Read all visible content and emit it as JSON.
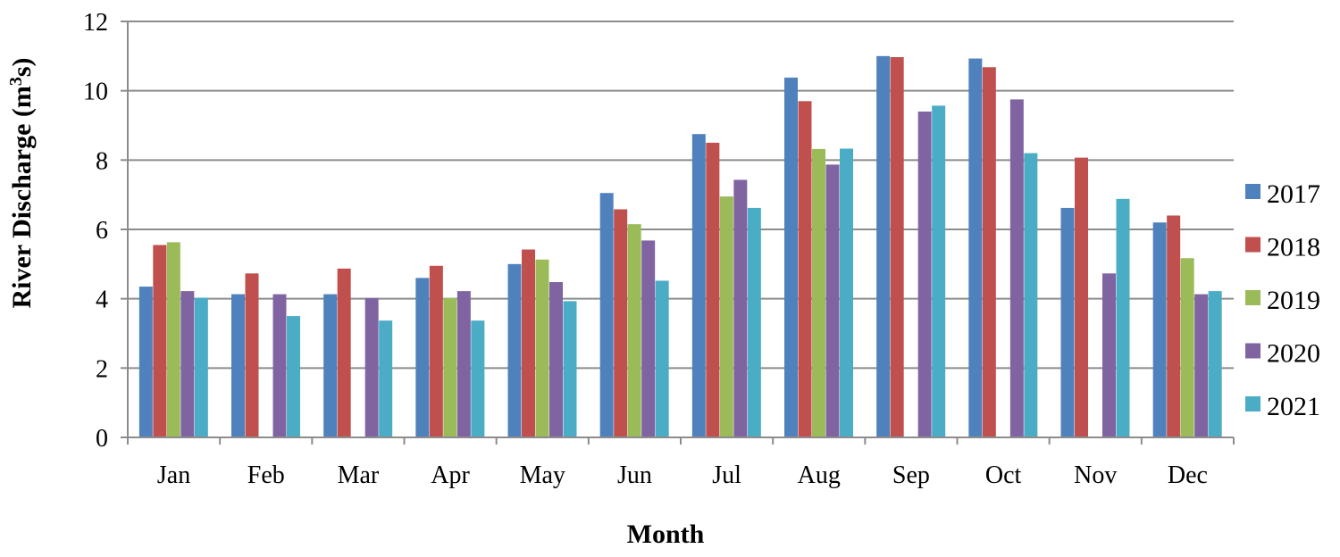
{
  "chart_data": {
    "type": "bar",
    "title": "",
    "xlabel": "Month",
    "ylabel": "River Discharge (m3s)",
    "ylabel_parts": {
      "base": "River Discharge (m",
      "sup": "3",
      "end": "s)"
    },
    "ylim": [
      0,
      12
    ],
    "yticks": [
      0,
      2,
      4,
      6,
      8,
      10,
      12
    ],
    "grid": true,
    "legend_position": "right",
    "categories": [
      "Jan",
      "Feb",
      "Mar",
      "Apr",
      "May",
      "Jun",
      "Jul",
      "Aug",
      "Sep",
      "Oct",
      "Nov",
      "Dec"
    ],
    "series": [
      {
        "name": "2017",
        "color": "#4f81bd",
        "values": [
          4.35,
          4.13,
          4.13,
          4.6,
          5.0,
          7.05,
          8.75,
          10.38,
          11.0,
          10.93,
          6.62,
          6.2
        ]
      },
      {
        "name": "2018",
        "color": "#c0504d",
        "values": [
          5.55,
          4.73,
          4.87,
          4.95,
          5.42,
          6.58,
          8.5,
          9.7,
          10.97,
          10.68,
          8.07,
          6.4
        ]
      },
      {
        "name": "2019",
        "color": "#9bbb59",
        "values": [
          5.63,
          null,
          null,
          4.02,
          5.13,
          6.15,
          6.95,
          8.32,
          null,
          null,
          null,
          5.17
        ]
      },
      {
        "name": "2020",
        "color": "#8064a2",
        "values": [
          4.22,
          4.13,
          4.02,
          4.22,
          4.48,
          5.68,
          7.43,
          7.87,
          9.4,
          9.75,
          4.73,
          4.13
        ]
      },
      {
        "name": "2021",
        "color": "#4bacc6",
        "values": [
          4.03,
          3.5,
          3.37,
          3.37,
          3.93,
          4.52,
          6.62,
          8.33,
          9.57,
          8.2,
          6.88,
          4.22
        ]
      }
    ]
  }
}
